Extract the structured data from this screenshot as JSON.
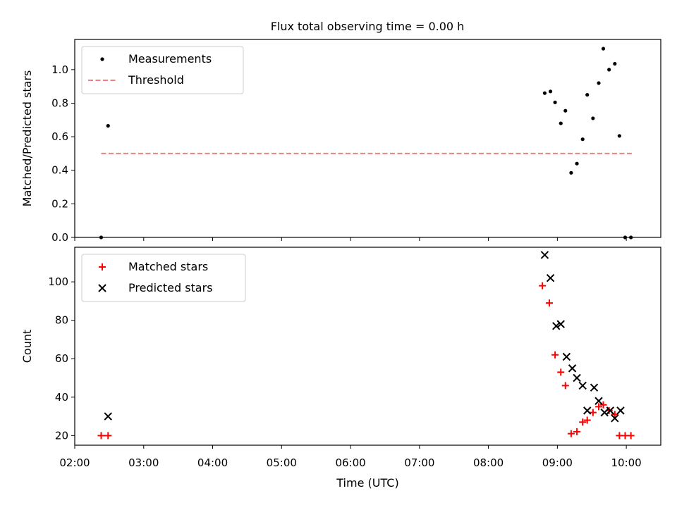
{
  "title": "Flux total observing time = 0.00 h",
  "chart_data": [
    {
      "type": "scatter",
      "ylabel": "Matched/Predicted stars",
      "xlim": [
        "02:00",
        "10:30"
      ],
      "ylim": [
        0.0,
        1.18
      ],
      "yticks": [
        0.0,
        0.2,
        0.4,
        0.6,
        0.8,
        1.0
      ],
      "yticklabels": [
        "0.0",
        "0.2",
        "0.4",
        "0.6",
        "0.8",
        "1.0"
      ],
      "legend_position": "upper-left",
      "series": [
        {
          "name": "Measurements",
          "marker": "dot",
          "color": "#000000",
          "points": [
            [
              "02:23",
              0.0
            ],
            [
              "02:29",
              0.665
            ],
            [
              "08:49",
              0.86
            ],
            [
              "08:54",
              0.87
            ],
            [
              "08:58",
              0.805
            ],
            [
              "09:03",
              0.68
            ],
            [
              "09:07",
              0.755
            ],
            [
              "09:12",
              0.385
            ],
            [
              "09:17",
              0.44
            ],
            [
              "09:22",
              0.585
            ],
            [
              "09:26",
              0.85
            ],
            [
              "09:31",
              0.71
            ],
            [
              "09:36",
              0.92
            ],
            [
              "09:40",
              1.125
            ],
            [
              "09:45",
              1.0
            ],
            [
              "09:50",
              1.035
            ],
            [
              "09:54",
              0.605
            ],
            [
              "09:59",
              0.0
            ],
            [
              "10:04",
              0.0
            ]
          ]
        },
        {
          "name": "Threshold",
          "style": "dashed",
          "color": "#f08080",
          "points": [
            [
              "02:23",
              0.5
            ],
            [
              "10:07",
              0.5
            ]
          ]
        }
      ]
    },
    {
      "type": "scatter",
      "xlabel": "Time (UTC)",
      "ylabel": "Count",
      "xlim": [
        "02:00",
        "10:30"
      ],
      "ylim": [
        15,
        118
      ],
      "xticks": [
        "02:00",
        "03:00",
        "04:00",
        "05:00",
        "06:00",
        "07:00",
        "08:00",
        "09:00",
        "10:00"
      ],
      "yticks": [
        20,
        40,
        60,
        80,
        100
      ],
      "yticklabels": [
        "20",
        "40",
        "60",
        "80",
        "100"
      ],
      "legend_position": "upper-left",
      "series": [
        {
          "name": "Matched stars",
          "marker": "plus",
          "color": "#ff0000",
          "points": [
            [
              "02:23",
              20
            ],
            [
              "02:29",
              20
            ],
            [
              "08:47",
              98
            ],
            [
              "08:53",
              89
            ],
            [
              "08:58",
              62
            ],
            [
              "09:03",
              53
            ],
            [
              "09:07",
              46
            ],
            [
              "09:12",
              21
            ],
            [
              "09:17",
              22
            ],
            [
              "09:22",
              27
            ],
            [
              "09:26",
              28
            ],
            [
              "09:31",
              32
            ],
            [
              "09:36",
              35
            ],
            [
              "09:40",
              36
            ],
            [
              "09:45",
              33
            ],
            [
              "09:50",
              31
            ],
            [
              "09:54",
              20
            ],
            [
              "09:59",
              20
            ],
            [
              "10:04",
              20
            ]
          ]
        },
        {
          "name": "Predicted stars",
          "marker": "x",
          "color": "#000000",
          "points": [
            [
              "02:29",
              30
            ],
            [
              "08:49",
              114
            ],
            [
              "08:54",
              102
            ],
            [
              "08:59",
              77
            ],
            [
              "09:03",
              78
            ],
            [
              "09:08",
              61
            ],
            [
              "09:13",
              55
            ],
            [
              "09:17",
              50
            ],
            [
              "09:22",
              46
            ],
            [
              "09:26",
              33
            ],
            [
              "09:32",
              45
            ],
            [
              "09:36",
              38
            ],
            [
              "09:41",
              32
            ],
            [
              "09:46",
              33
            ],
            [
              "09:50",
              29
            ],
            [
              "09:55",
              33
            ]
          ]
        }
      ]
    }
  ]
}
